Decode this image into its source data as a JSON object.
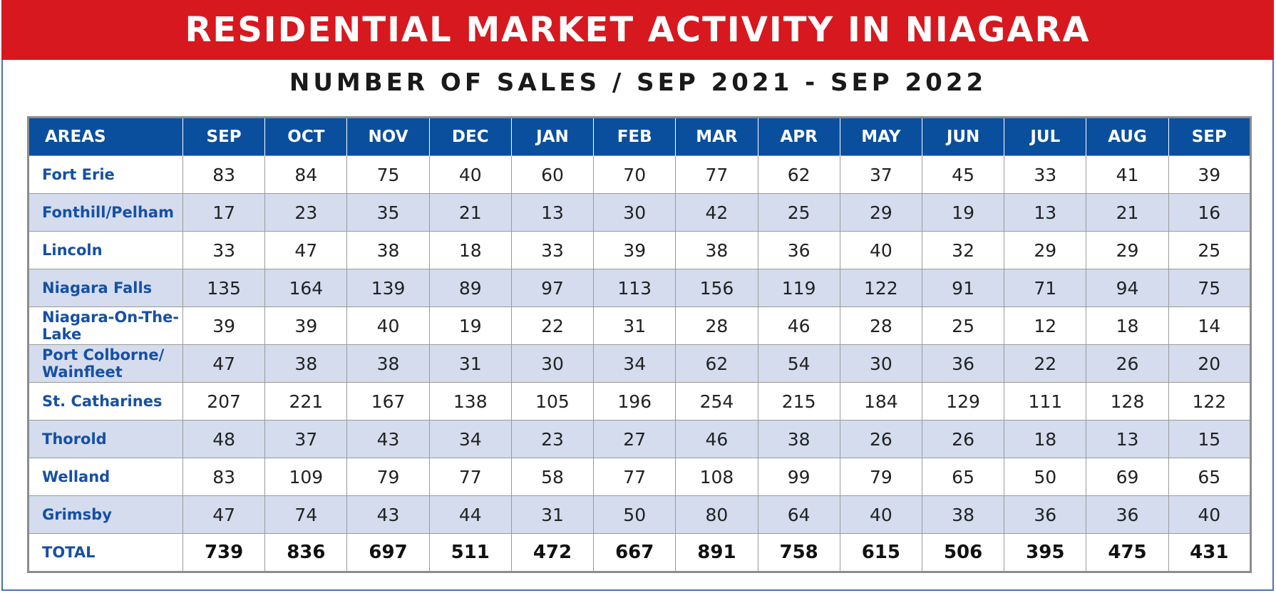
{
  "header": {
    "title": "RESIDENTIAL MARKET ACTIVITY IN NIAGARA",
    "subtitle": "NUMBER OF SALES / SEP 2021 - SEP 2022"
  },
  "colors": {
    "banner": "#d7181e",
    "table_header": "#0a4f9e",
    "area_text": "#1650a3",
    "alt_row": "#d4dcee"
  },
  "chart_data": {
    "type": "table",
    "title": "RESIDENTIAL MARKET ACTIVITY IN NIAGARA",
    "subtitle": "NUMBER OF SALES / SEP 2021 - SEP 2022",
    "area_header": "AREAS",
    "columns": [
      "SEP",
      "OCT",
      "NOV",
      "DEC",
      "JAN",
      "FEB",
      "MAR",
      "APR",
      "MAY",
      "JUN",
      "JUL",
      "AUG",
      "SEP"
    ],
    "rows": [
      {
        "area": "Fort Erie",
        "values": [
          83,
          84,
          75,
          40,
          60,
          70,
          77,
          62,
          37,
          45,
          33,
          41,
          39
        ]
      },
      {
        "area": "Fonthill/Pelham",
        "values": [
          17,
          23,
          35,
          21,
          13,
          30,
          42,
          25,
          29,
          19,
          13,
          21,
          16
        ]
      },
      {
        "area": "Lincoln",
        "values": [
          33,
          47,
          38,
          18,
          33,
          39,
          38,
          36,
          40,
          32,
          29,
          29,
          25
        ]
      },
      {
        "area": "Niagara Falls",
        "values": [
          135,
          164,
          139,
          89,
          97,
          113,
          156,
          119,
          122,
          91,
          71,
          94,
          75
        ]
      },
      {
        "area": "Niagara-On-The-Lake",
        "values": [
          39,
          39,
          40,
          19,
          22,
          31,
          28,
          46,
          28,
          25,
          12,
          18,
          14
        ]
      },
      {
        "area": "Port Colborne/ Wainfleet",
        "values": [
          47,
          38,
          38,
          31,
          30,
          34,
          62,
          54,
          30,
          36,
          22,
          26,
          20
        ]
      },
      {
        "area": "St. Catharines",
        "values": [
          207,
          221,
          167,
          138,
          105,
          196,
          254,
          215,
          184,
          129,
          111,
          128,
          122
        ]
      },
      {
        "area": "Thorold",
        "values": [
          48,
          37,
          43,
          34,
          23,
          27,
          46,
          38,
          26,
          26,
          18,
          13,
          15
        ]
      },
      {
        "area": "Welland",
        "values": [
          83,
          109,
          79,
          77,
          58,
          77,
          108,
          99,
          79,
          65,
          50,
          69,
          65
        ]
      },
      {
        "area": "Grimsby",
        "values": [
          47,
          74,
          43,
          44,
          31,
          50,
          80,
          64,
          40,
          38,
          36,
          36,
          40
        ]
      }
    ],
    "total": {
      "area": "TOTAL",
      "values": [
        739,
        836,
        697,
        511,
        472,
        667,
        891,
        758,
        615,
        506,
        395,
        475,
        431
      ]
    }
  }
}
